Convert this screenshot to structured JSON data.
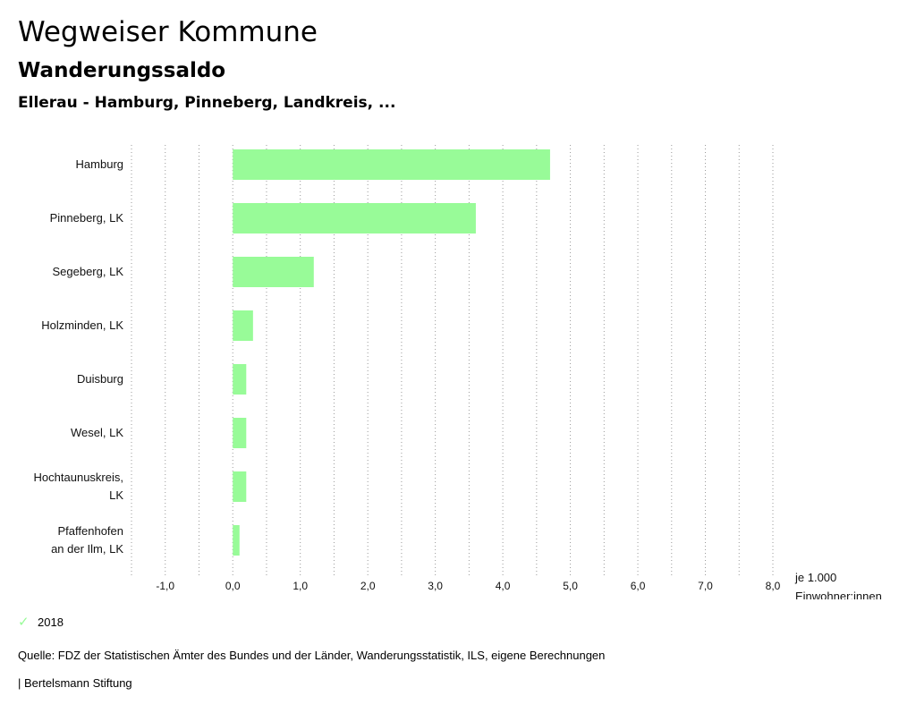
{
  "header": {
    "title": "Wegweiser Kommune",
    "subtitle": "Wanderungssaldo",
    "region": "Ellerau - Hamburg, Pinneberg, Landkreis, ..."
  },
  "chart_data": {
    "type": "bar",
    "orientation": "horizontal",
    "categories": [
      [
        "Hamburg"
      ],
      [
        "Pinneberg, LK"
      ],
      [
        "Segeberg, LK"
      ],
      [
        "Holzminden, LK"
      ],
      [
        "Duisburg"
      ],
      [
        "Wesel, LK"
      ],
      [
        "Hochtaunuskreis,",
        "LK"
      ],
      [
        "Pfaffenhofen",
        "an der Ilm, LK"
      ]
    ],
    "series": [
      {
        "name": "2018",
        "color": "#98fb98",
        "values": [
          4.7,
          3.6,
          1.2,
          0.3,
          0.2,
          0.2,
          0.2,
          0.1
        ]
      }
    ],
    "xlim": [
      -1.5,
      8.0
    ],
    "xticks": [
      -1.0,
      0.0,
      1.0,
      2.0,
      3.0,
      4.0,
      5.0,
      6.0,
      7.0,
      8.0
    ],
    "xtick_labels": [
      "-1,0",
      "0,0",
      "1,0",
      "2,0",
      "3,0",
      "4,0",
      "5,0",
      "6,0",
      "7,0",
      "8,0"
    ],
    "unit_label": [
      "je 1.000",
      "Einwohner:innen"
    ],
    "grid": "vertical dotted",
    "legend_position": "bottom-left"
  },
  "legend": {
    "label": "2018",
    "icon": "check-icon",
    "color": "#98fb98"
  },
  "footer": {
    "source": "Quelle: FDZ der Statistischen Ämter des Bundes und der Länder, Wanderungsstatistik, ILS, eigene Berechnungen",
    "credit": "| Bertelsmann Stiftung"
  }
}
